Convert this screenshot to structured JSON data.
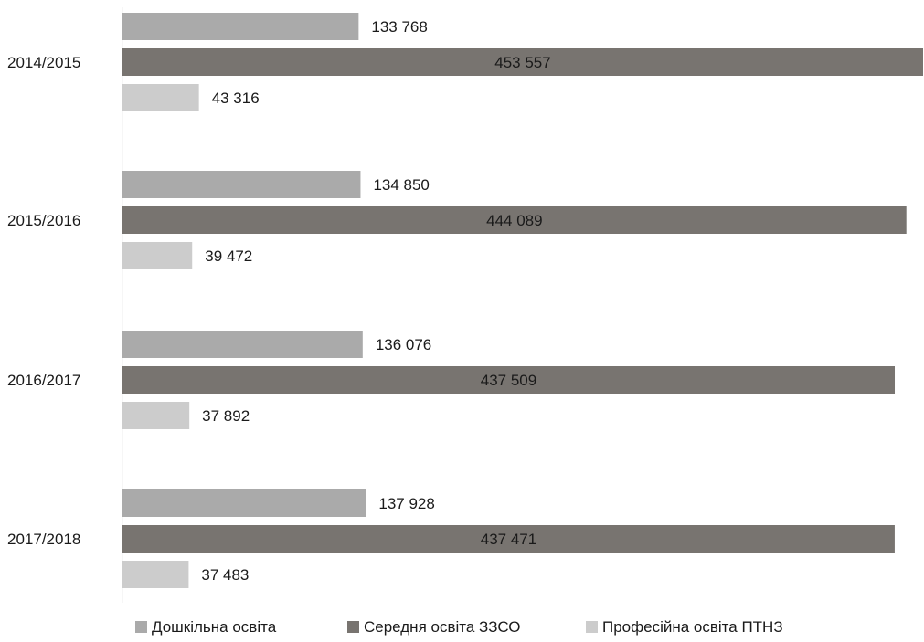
{
  "chart_data": {
    "type": "bar",
    "orientation": "horizontal",
    "title": "",
    "xlabel": "",
    "ylabel": "",
    "categories": [
      "2014/2015",
      "2015/2016",
      "2016/2017",
      "2017/2018"
    ],
    "series": [
      {
        "name": "Дошкільна освіта",
        "color": "#aaaaaa",
        "values": [
          133768,
          134850,
          136076,
          137928
        ],
        "labels": [
          "133 768",
          "134 850",
          "136 076",
          "137 928"
        ]
      },
      {
        "name": "Середня освіта ЗЗСО",
        "color": "#787470",
        "values": [
          453557,
          444089,
          437509,
          437471
        ],
        "labels": [
          "453 557",
          "444 089",
          "437 509",
          "437 471"
        ]
      },
      {
        "name": "Професійна освіта ПТНЗ",
        "color": "#cccccc",
        "values": [
          43316,
          39472,
          37892,
          37483
        ],
        "labels": [
          "43 316",
          "39 472",
          "37 892",
          "37 483"
        ]
      }
    ],
    "xlim": [
      0,
      453557
    ],
    "grid": false,
    "legend_position": "bottom",
    "data_labels": true
  }
}
